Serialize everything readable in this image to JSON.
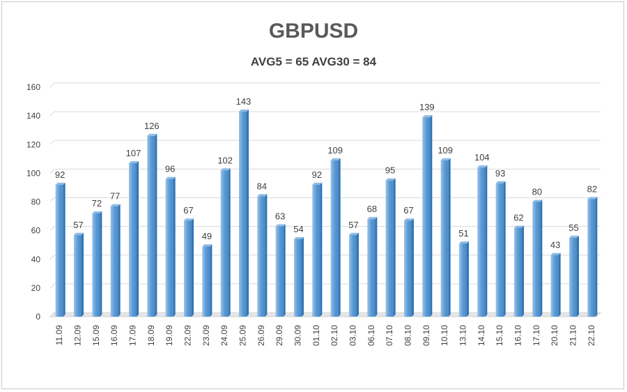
{
  "chart_data": {
    "type": "bar",
    "title": "GBPUSD",
    "subtitle": "AVG5 = 65 AVG30 = 84",
    "xlabel": "",
    "ylabel": "",
    "ylim": [
      0,
      160
    ],
    "yticks": [
      0,
      20,
      40,
      60,
      80,
      100,
      120,
      140,
      160
    ],
    "grid": true,
    "legend": "none",
    "categories": [
      "11.09",
      "12.09",
      "15.09",
      "16.09",
      "17.09",
      "18.09",
      "19.09",
      "22.09",
      "23.09",
      "24.09",
      "25.09",
      "26.09",
      "29.09",
      "30.09",
      "01.10",
      "02.10",
      "03.10",
      "06.10",
      "07.10",
      "08.10",
      "09.10",
      "10.10",
      "13.10",
      "14.10",
      "15.10",
      "16.10",
      "17.10",
      "20.10",
      "21.10",
      "22.10"
    ],
    "values": [
      92,
      57,
      72,
      77,
      107,
      126,
      96,
      67,
      49,
      102,
      143,
      84,
      63,
      54,
      92,
      109,
      57,
      68,
      95,
      67,
      139,
      109,
      51,
      104,
      93,
      62,
      80,
      43,
      55,
      82
    ],
    "colors": {
      "bar": "#5b9bd5",
      "bar_dark": "#2e75b6",
      "grid": "#d9d9d9"
    }
  }
}
